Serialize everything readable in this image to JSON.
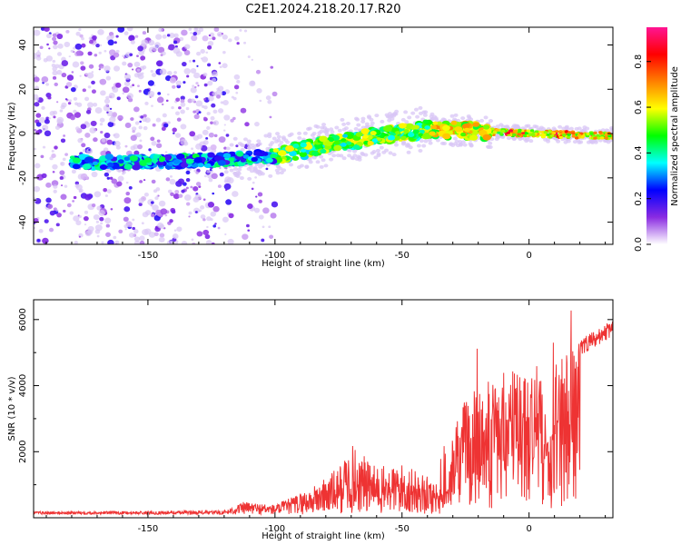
{
  "title": "C2E1.2024.218.20.17.R20",
  "chart_data": [
    {
      "type": "heatmap",
      "xlabel": "Height of straight line (km)",
      "ylabel": "Frequency (Hz)",
      "xlim": [
        -195,
        33
      ],
      "ylim": [
        -50,
        48
      ],
      "x_ticks": [
        -150,
        -100,
        -50,
        0
      ],
      "y_ticks": [
        -40,
        -20,
        0,
        20,
        40
      ],
      "colorbar": {
        "label": "Normalized spectral amplitude",
        "range": [
          0.0,
          0.95
        ],
        "ticks": [
          0.0,
          0.2,
          0.4,
          0.6,
          0.8
        ],
        "colors": [
          "#ffffff",
          "#8a2be2",
          "#0000ff",
          "#00ffff",
          "#00ff00",
          "#ffff00",
          "#ff8000",
          "#ff0000",
          "#ff1493"
        ]
      },
      "ridge": [
        {
          "x": -175,
          "y": -13
        },
        {
          "x": -150,
          "y": -13
        },
        {
          "x": -120,
          "y": -12
        },
        {
          "x": -100,
          "y": -10
        },
        {
          "x": -80,
          "y": -5
        },
        {
          "x": -60,
          "y": -1
        },
        {
          "x": -40,
          "y": 2
        },
        {
          "x": -20,
          "y": 1
        },
        {
          "x": 0,
          "y": 0
        },
        {
          "x": 33,
          "y": -1
        }
      ]
    },
    {
      "type": "line",
      "xlabel": "Height of straight line (km)",
      "ylabel": "SNR (10 * v/v)",
      "xlim": [
        -195,
        33
      ],
      "ylim": [
        0,
        6600
      ],
      "x_ticks": [
        -150,
        -100,
        -50,
        0
      ],
      "y_ticks": [
        2000,
        4000,
        6000
      ],
      "color": "#ee3333",
      "envelope": [
        {
          "x": -195,
          "y": 150
        },
        {
          "x": -150,
          "y": 160
        },
        {
          "x": -120,
          "y": 180
        },
        {
          "x": -112,
          "y": 450
        },
        {
          "x": -100,
          "y": 350
        },
        {
          "x": -85,
          "y": 900
        },
        {
          "x": -75,
          "y": 1500
        },
        {
          "x": -70,
          "y": 2200
        },
        {
          "x": -60,
          "y": 1500
        },
        {
          "x": -50,
          "y": 1600
        },
        {
          "x": -40,
          "y": 1200
        },
        {
          "x": -32,
          "y": 900
        },
        {
          "x": -30,
          "y": 2600
        },
        {
          "x": -25,
          "y": 3700
        },
        {
          "x": -20,
          "y": 4000
        },
        {
          "x": -15,
          "y": 4200
        },
        {
          "x": -10,
          "y": 4400
        },
        {
          "x": -5,
          "y": 4600
        },
        {
          "x": 0,
          "y": 4500
        },
        {
          "x": 5,
          "y": 4700
        },
        {
          "x": 8,
          "y": 2000
        },
        {
          "x": 10,
          "y": 4800
        },
        {
          "x": 20,
          "y": 5400
        },
        {
          "x": 33,
          "y": 6000
        }
      ]
    }
  ]
}
